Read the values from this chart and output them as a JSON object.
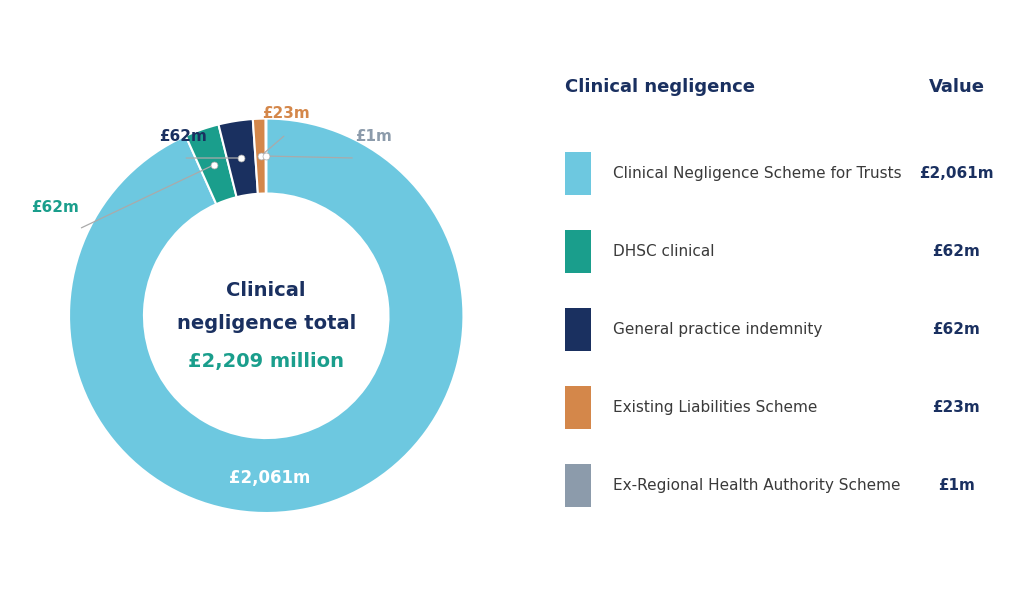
{
  "values": [
    2061,
    62,
    62,
    23,
    1
  ],
  "colors": [
    "#6DC8E0",
    "#1A9E8C",
    "#1A3060",
    "#D4874A",
    "#8C9BAB"
  ],
  "labels": [
    "£2,061m",
    "£62m",
    "£62m",
    "£23m",
    "£1m"
  ],
  "legend_title": "Clinical negligence",
  "legend_value_header": "Value",
  "legend_items": [
    "Clinical Negligence Scheme for Trusts",
    "DHSC clinical",
    "General practice indemnity",
    "Existing Liabilities Scheme",
    "Ex-Regional Health Authority Scheme"
  ],
  "legend_values": [
    "£2,061m",
    "£62m",
    "£62m",
    "£23m",
    "£1m"
  ],
  "center_text_line1": "Clinical",
  "center_text_line2": "negligence total",
  "center_text_line3": "£2,209 million",
  "center_text_color1": "#1A3060",
  "center_text_color2": "#1A9E8C",
  "background_color": "#ffffff",
  "title_color": "#1A3060",
  "label_text_color": "#555555"
}
